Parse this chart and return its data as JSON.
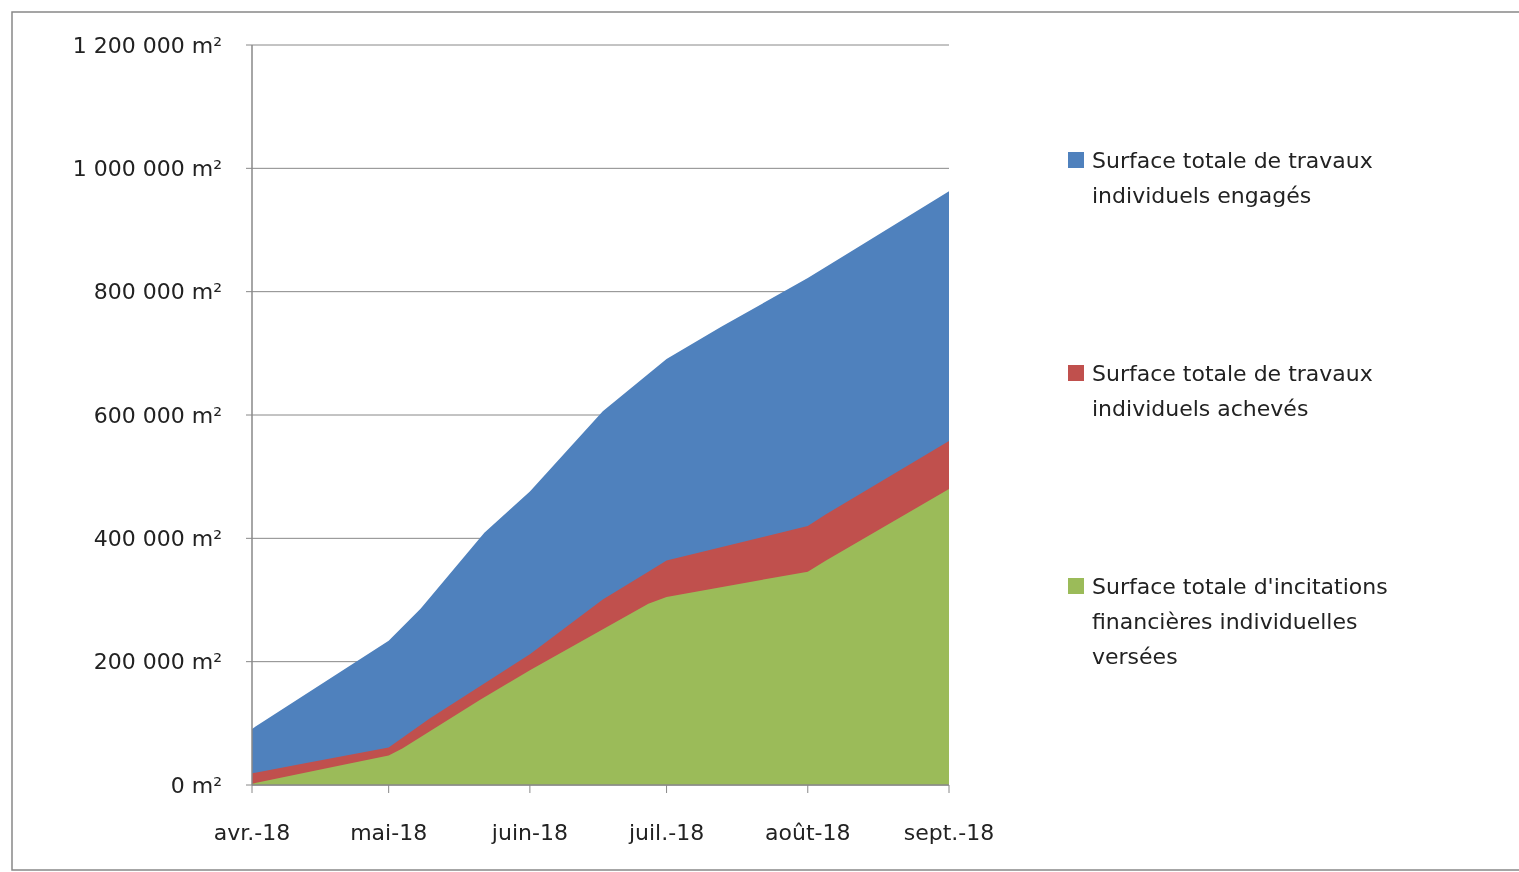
{
  "chart_data": {
    "type": "area",
    "xlim": [
      "2018-04-01",
      "2018-09-01"
    ],
    "xticks": [
      {
        "value": "2018-04-01",
        "label": "avr.-18"
      },
      {
        "value": "2018-05-01",
        "label": "mai-18"
      },
      {
        "value": "2018-06-01",
        "label": "juin-18"
      },
      {
        "value": "2018-07-01",
        "label": "juil.-18"
      },
      {
        "value": "2018-08-01",
        "label": "août-18"
      },
      {
        "value": "2018-09-01",
        "label": "sept.-18"
      }
    ],
    "ylim": [
      0,
      1200000
    ],
    "yticks": [
      {
        "value": 0,
        "label": "0 m²"
      },
      {
        "value": 200000,
        "label": "200 000 m²"
      },
      {
        "value": 400000,
        "label": "400 000 m²"
      },
      {
        "value": 600000,
        "label": "600 000 m²"
      },
      {
        "value": 800000,
        "label": "800 000 m²"
      },
      {
        "value": 1000000,
        "label": "1 000 000 m²"
      },
      {
        "value": 1200000,
        "label": "1 200 000 m²"
      }
    ],
    "grid": "y",
    "legend": "right",
    "series": [
      {
        "name": "Surface totale de travaux individuels engagés",
        "color": "#4f81bd",
        "x": [
          "2018-04-01",
          "2018-05-01",
          "2018-05-08",
          "2018-05-22",
          "2018-06-01",
          "2018-06-17",
          "2018-07-01",
          "2018-07-13",
          "2018-08-01",
          "2018-09-01"
        ],
        "values": [
          91000,
          234000,
          286000,
          409000,
          476000,
          606000,
          691000,
          743000,
          822000,
          963000
        ]
      },
      {
        "name": "Surface totale de travaux individuels achevés",
        "color": "#c0504d",
        "x": [
          "2018-04-01",
          "2018-05-01",
          "2018-05-10",
          "2018-06-01",
          "2018-06-17",
          "2018-06-27",
          "2018-07-01",
          "2018-08-01",
          "2018-08-05",
          "2018-09-01"
        ],
        "values": [
          19000,
          61000,
          108000,
          212000,
          301000,
          346000,
          364000,
          420000,
          439000,
          558000
        ]
      },
      {
        "name": "Surface totale d'incitations financières individuelles versées",
        "color": "#9bbb59",
        "x": [
          "2018-04-01",
          "2018-05-01",
          "2018-05-04",
          "2018-05-21",
          "2018-06-01",
          "2018-06-27",
          "2018-07-01",
          "2018-08-01",
          "2018-08-05",
          "2018-09-01"
        ],
        "values": [
          2000,
          48000,
          59000,
          138000,
          186000,
          294000,
          305000,
          346000,
          364000,
          480000
        ]
      }
    ]
  }
}
